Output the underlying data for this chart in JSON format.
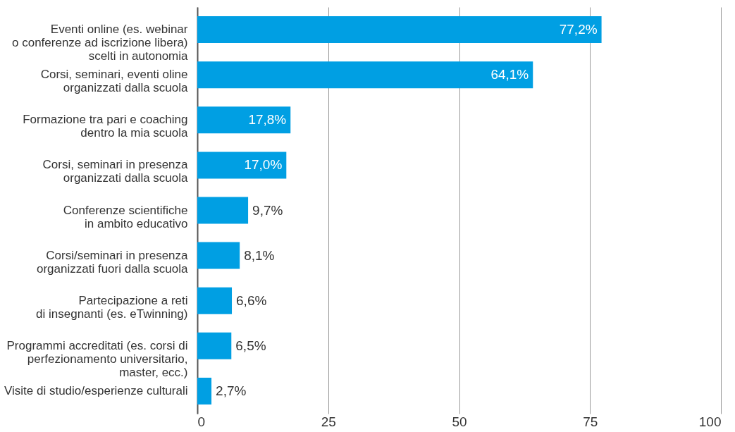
{
  "chart_data": {
    "type": "bar",
    "orientation": "horizontal",
    "categories": [
      "Eventi online (es. webinar\no conferenze ad iscrizione libera)\nscelti in autonomia",
      "Corsi, seminari, eventi oline\norganizzati dalla scuola",
      "Formazione tra pari e coaching\ndentro la mia scuola",
      "Corsi, seminari in presenza\norganizzati dalla scuola",
      "Conferenze scientifiche\nin ambito educativo",
      "Corsi/seminari in presenza\norganizzati fuori dalla scuola",
      "Partecipazione a reti\ndi insegnanti (es. eTwinning)",
      "Programmi accreditati (es. corsi di\nperfezionamento universitario,\nmaster, ecc.)",
      "Visite di studio/esperienze culturali"
    ],
    "values": [
      77.2,
      64.1,
      17.8,
      17.0,
      9.7,
      8.1,
      6.6,
      6.5,
      2.7
    ],
    "value_labels": [
      "77,2%",
      "64,1%",
      "17,8%",
      "17,0%",
      "9,7%",
      "8,1%",
      "6,6%",
      "6,5%",
      "2,7%"
    ],
    "color": "#009fe3",
    "xlim": [
      0,
      100
    ],
    "xticks": [
      0,
      25,
      50,
      75,
      100
    ],
    "grid": "x"
  }
}
